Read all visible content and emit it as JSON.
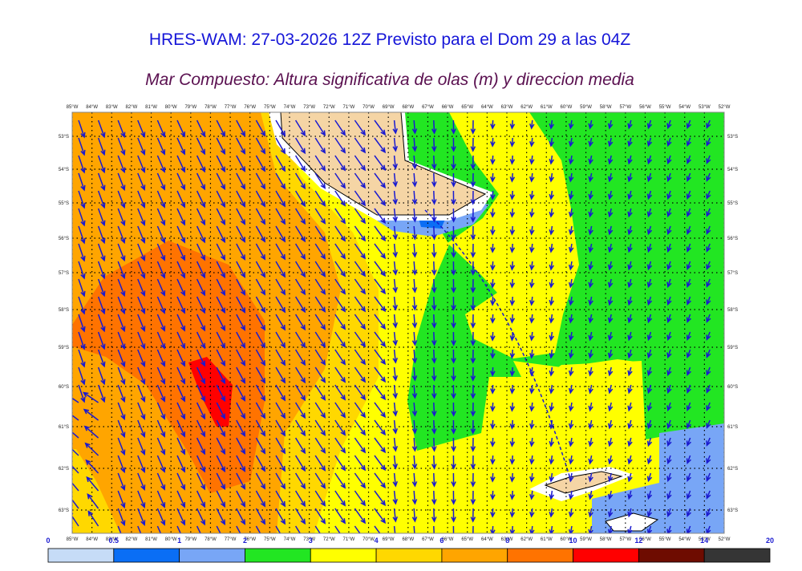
{
  "header": {
    "title": "HRES-WAM: 27-03-2026 12Z Previsto para el Dom 29 a las 04Z",
    "subtitle": "Mar Compuesto: Altura significativa de olas (m) y direccion media"
  },
  "map": {
    "longitudes": [
      "85°W",
      "84°W",
      "83°W",
      "82°W",
      "81°W",
      "80°W",
      "79°W",
      "78°W",
      "77°W",
      "76°W",
      "75°W",
      "74°W",
      "73°W",
      "72°W",
      "71°W",
      "70°W",
      "69°W",
      "68°W",
      "67°W",
      "66°W",
      "65°W",
      "64°W",
      "63°W",
      "62°W",
      "61°W",
      "60°W",
      "59°W",
      "58°W",
      "57°W",
      "56°W",
      "55°W",
      "54°W",
      "53°W",
      "52°W"
    ],
    "latitudes": [
      "53°S",
      "54°S",
      "55°S",
      "56°S",
      "57°S",
      "58°S",
      "59°S",
      "60°S",
      "61°S",
      "62°S",
      "63°S"
    ]
  },
  "colorbar": {
    "ticks": [
      0,
      0.5,
      1,
      2,
      3,
      4,
      6,
      8,
      10,
      12,
      14,
      20
    ],
    "colors": [
      "#c6dcf7",
      "#0a6ef5",
      "#78a6f6",
      "#22e622",
      "#ffff00",
      "#ffd800",
      "#ffa500",
      "#ff7300",
      "#ff0000",
      "#6e0c00",
      "#353535"
    ]
  }
}
